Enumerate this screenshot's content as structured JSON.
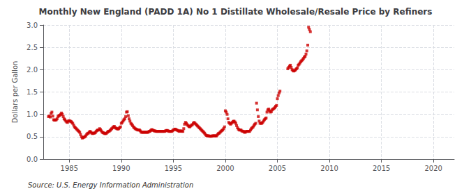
{
  "chart_data": {
    "type": "scatter",
    "title": "Monthly New England (PADD 1A) No 1 Distillate Wholesale/Resale Price by Refiners",
    "ylabel": "Dollars per Gallon",
    "annotation": "Source: U.S. Energy Information Administration",
    "color": "#cc0000",
    "marker": "square",
    "grid": true,
    "xlim": [
      1982.5,
      2022
    ],
    "xticks": [
      1985,
      1990,
      1995,
      2000,
      2005,
      2010,
      2015,
      2020
    ],
    "ylim": [
      0.0,
      3.0
    ],
    "yticks": [
      {
        "value": 0.0,
        "label": "0.0"
      },
      0.5,
      {
        "value": 1.0,
        "label": "1.0"
      },
      1.5,
      {
        "value": 2.0,
        "label": "2.0"
      },
      2.5,
      {
        "value": 3.0,
        "label": "3.0"
      }
    ],
    "x": [
      1983.0,
      1983.08,
      1983.17,
      1983.25,
      1983.33,
      1983.42,
      1983.5,
      1983.58,
      1983.67,
      1983.75,
      1983.83,
      1983.92,
      1984.0,
      1984.08,
      1984.17,
      1984.25,
      1984.33,
      1984.42,
      1984.5,
      1984.58,
      1984.67,
      1984.75,
      1984.83,
      1984.92,
      1985.0,
      1985.08,
      1985.17,
      1985.25,
      1985.33,
      1985.42,
      1985.5,
      1985.58,
      1985.67,
      1985.75,
      1985.83,
      1985.92,
      1986.0,
      1986.08,
      1986.17,
      1986.25,
      1986.33,
      1986.42,
      1986.5,
      1986.58,
      1986.67,
      1986.75,
      1986.83,
      1986.92,
      1987.0,
      1987.08,
      1987.17,
      1987.25,
      1987.33,
      1987.42,
      1987.5,
      1987.58,
      1987.67,
      1987.75,
      1987.83,
      1987.92,
      1988.0,
      1988.08,
      1988.17,
      1988.25,
      1988.33,
      1988.42,
      1988.5,
      1988.58,
      1988.67,
      1988.75,
      1988.83,
      1988.92,
      1989.0,
      1989.08,
      1989.17,
      1989.25,
      1989.33,
      1989.42,
      1989.5,
      1989.58,
      1989.67,
      1989.75,
      1989.83,
      1989.92,
      1990.0,
      1990.08,
      1990.17,
      1990.25,
      1990.33,
      1990.42,
      1990.5,
      1990.58,
      1990.67,
      1990.75,
      1990.83,
      1990.92,
      1991.0,
      1991.08,
      1991.17,
      1991.25,
      1991.33,
      1991.42,
      1991.5,
      1991.58,
      1991.67,
      1991.75,
      1991.83,
      1991.92,
      1992.0,
      1992.08,
      1992.17,
      1992.25,
      1992.33,
      1992.42,
      1992.5,
      1992.58,
      1992.67,
      1992.75,
      1992.83,
      1992.92,
      1993.0,
      1993.08,
      1993.17,
      1993.25,
      1993.33,
      1993.42,
      1993.5,
      1993.58,
      1993.67,
      1993.75,
      1993.83,
      1993.92,
      1994.0,
      1994.08,
      1994.17,
      1994.25,
      1994.33,
      1994.42,
      1994.5,
      1994.58,
      1994.67,
      1994.75,
      1994.83,
      1994.92,
      1995.0,
      1995.08,
      1995.17,
      1995.25,
      1995.33,
      1995.42,
      1995.5,
      1995.58,
      1995.67,
      1995.75,
      1995.83,
      1995.92,
      1996.0,
      1996.08,
      1996.17,
      1996.25,
      1996.33,
      1996.42,
      1996.5,
      1996.58,
      1996.67,
      1996.75,
      1996.83,
      1996.92,
      1997.0,
      1997.08,
      1997.17,
      1997.25,
      1997.33,
      1997.42,
      1997.5,
      1997.58,
      1997.67,
      1997.75,
      1997.83,
      1997.92,
      1998.0,
      1998.08,
      1998.17,
      1998.25,
      1998.33,
      1998.42,
      1998.5,
      1998.58,
      1998.67,
      1998.75,
      1998.83,
      1998.92,
      1999.0,
      1999.08,
      1999.17,
      1999.25,
      1999.33,
      1999.42,
      1999.5,
      1999.58,
      1999.67,
      1999.75,
      1999.83,
      1999.92,
      2000.0,
      2000.08,
      2000.17,
      2000.25,
      2000.33,
      2000.42,
      2000.5,
      2000.58,
      2000.67,
      2000.75,
      2000.83,
      2000.92,
      2001.0,
      2001.08,
      2001.17,
      2001.25,
      2001.33,
      2001.42,
      2001.5,
      2001.58,
      2001.67,
      2001.75,
      2001.83,
      2001.92,
      2002.0,
      2002.08,
      2002.17,
      2002.25,
      2002.33,
      2002.42,
      2002.5,
      2002.58,
      2002.67,
      2002.75,
      2002.83,
      2002.92,
      2003.0,
      2003.08,
      2003.17,
      2003.25,
      2003.33,
      2003.42,
      2003.5,
      2003.58,
      2003.67,
      2003.75,
      2003.83,
      2003.92,
      2004.0,
      2004.08,
      2004.17,
      2004.25,
      2004.33,
      2004.42,
      2004.5,
      2004.58,
      2004.67,
      2004.75,
      2004.83,
      2004.92,
      2005.0,
      2005.08,
      2005.17,
      2005.25,
      2006.0,
      2006.08,
      2006.17,
      2006.25,
      2006.33,
      2006.42,
      2006.5,
      2006.58,
      2006.67,
      2006.75,
      2006.83,
      2006.92,
      2007.0,
      2007.08,
      2007.17,
      2007.25,
      2007.33,
      2007.42,
      2007.5,
      2007.58,
      2007.67,
      2007.75,
      2007.83,
      2007.92,
      2008.0,
      2008.08,
      2008.17
    ],
    "values": [
      0.95,
      0.96,
      0.94,
      1.02,
      1.05,
      0.96,
      0.88,
      0.87,
      0.87,
      0.88,
      0.9,
      0.95,
      0.97,
      0.98,
      1.0,
      1.03,
      1.0,
      0.95,
      0.9,
      0.88,
      0.85,
      0.83,
      0.82,
      0.85,
      0.86,
      0.85,
      0.84,
      0.82,
      0.8,
      0.76,
      0.72,
      0.7,
      0.68,
      0.66,
      0.64,
      0.62,
      0.6,
      0.55,
      0.5,
      0.47,
      0.48,
      0.49,
      0.5,
      0.52,
      0.55,
      0.57,
      0.58,
      0.6,
      0.62,
      0.6,
      0.58,
      0.57,
      0.58,
      0.58,
      0.59,
      0.62,
      0.64,
      0.65,
      0.65,
      0.68,
      0.66,
      0.63,
      0.6,
      0.59,
      0.58,
      0.57,
      0.57,
      0.58,
      0.6,
      0.62,
      0.62,
      0.64,
      0.66,
      0.68,
      0.7,
      0.72,
      0.73,
      0.7,
      0.69,
      0.68,
      0.67,
      0.68,
      0.7,
      0.72,
      0.8,
      0.82,
      0.85,
      0.88,
      0.9,
      0.95,
      1.05,
      1.06,
      0.97,
      0.9,
      0.85,
      0.8,
      0.78,
      0.75,
      0.72,
      0.7,
      0.68,
      0.67,
      0.66,
      0.65,
      0.65,
      0.65,
      0.63,
      0.6,
      0.6,
      0.6,
      0.6,
      0.6,
      0.6,
      0.6,
      0.6,
      0.6,
      0.62,
      0.62,
      0.64,
      0.66,
      0.65,
      0.64,
      0.63,
      0.63,
      0.62,
      0.62,
      0.62,
      0.62,
      0.62,
      0.62,
      0.62,
      0.62,
      0.62,
      0.62,
      0.62,
      0.63,
      0.64,
      0.64,
      0.63,
      0.62,
      0.62,
      0.62,
      0.62,
      0.63,
      0.65,
      0.66,
      0.67,
      0.66,
      0.65,
      0.64,
      0.63,
      0.62,
      0.63,
      0.63,
      0.62,
      0.62,
      0.68,
      0.78,
      0.82,
      0.8,
      0.77,
      0.75,
      0.73,
      0.72,
      0.74,
      0.76,
      0.77,
      0.8,
      0.82,
      0.8,
      0.78,
      0.76,
      0.74,
      0.72,
      0.7,
      0.68,
      0.66,
      0.64,
      0.62,
      0.6,
      0.58,
      0.55,
      0.53,
      0.52,
      0.52,
      0.52,
      0.51,
      0.51,
      0.51,
      0.52,
      0.52,
      0.52,
      0.52,
      0.52,
      0.52,
      0.55,
      0.57,
      0.58,
      0.6,
      0.62,
      0.64,
      0.65,
      0.68,
      0.72,
      1.08,
      1.05,
      1.0,
      0.9,
      0.82,
      0.8,
      0.78,
      0.8,
      0.82,
      0.84,
      0.85,
      0.83,
      0.8,
      0.75,
      0.7,
      0.67,
      0.65,
      0.65,
      0.65,
      0.63,
      0.62,
      0.62,
      0.6,
      0.6,
      0.62,
      0.62,
      0.62,
      0.62,
      0.62,
      0.65,
      0.68,
      0.7,
      0.72,
      0.75,
      0.78,
      0.8,
      1.25,
      1.1,
      0.95,
      0.85,
      0.8,
      0.8,
      0.8,
      0.82,
      0.85,
      0.88,
      0.9,
      0.92,
      1.05,
      1.1,
      1.12,
      1.08,
      1.05,
      1.06,
      1.1,
      1.12,
      1.13,
      1.15,
      1.18,
      1.2,
      1.35,
      1.42,
      1.48,
      1.52,
      2.02,
      2.05,
      2.08,
      2.1,
      2.05,
      2.0,
      1.98,
      1.97,
      1.98,
      2.0,
      2.02,
      2.04,
      2.1,
      2.12,
      2.15,
      2.18,
      2.2,
      2.22,
      2.25,
      2.28,
      2.3,
      2.35,
      2.42,
      2.55,
      2.95,
      2.9,
      2.85
    ]
  }
}
